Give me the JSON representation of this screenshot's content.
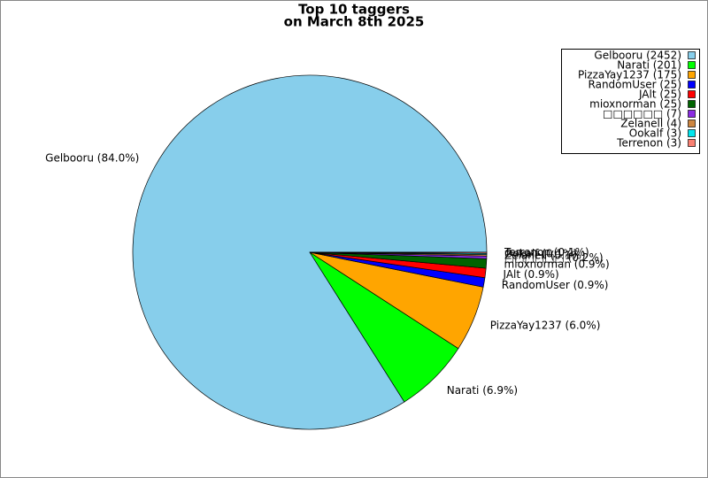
{
  "chart_data": {
    "type": "pie",
    "title": "Top 10 taggers",
    "subtitle": "on March 8th 2025",
    "categories": [
      "Gelbooru",
      "Narati",
      "PizzaYay1237",
      "RandomUser",
      "JAlt",
      "mioxnorman",
      "□□□□□□",
      "Zelanell",
      "Ookalf",
      "Terrenon"
    ],
    "values": [
      2452,
      201,
      175,
      25,
      25,
      25,
      7,
      4,
      3,
      3
    ],
    "legend_labels": [
      "Gelbooru (2452)",
      "Narati (201)",
      "PizzaYay1237 (175)",
      "RandomUser (25)",
      "JAlt (25)",
      "mioxnorman (25)",
      "□□□□□□ (7)",
      "Zelanell (4)",
      "Ookalf (3)",
      "Terrenon (3)"
    ],
    "slice_labels": [
      "Gelbooru (84.0%)",
      "Narati (6.9%)",
      "PizzaYay1237 (6.0%)",
      "RandomUser (0.9%)",
      "JAlt (0.9%)",
      "mioxnorman (0.9%)",
      "□□□□□□ (0.2%)",
      "Zelanell (0.1%)",
      "Ookalf (0.1%)",
      "Terrenon (0.1%)"
    ],
    "colors": [
      "#87ceeb",
      "#00ff00",
      "#ffa500",
      "#0000ff",
      "#ff0000",
      "#006400",
      "#8a2be2",
      "#cd853f",
      "#00e5ee",
      "#fa8072"
    ],
    "legend_position": "upper right"
  }
}
